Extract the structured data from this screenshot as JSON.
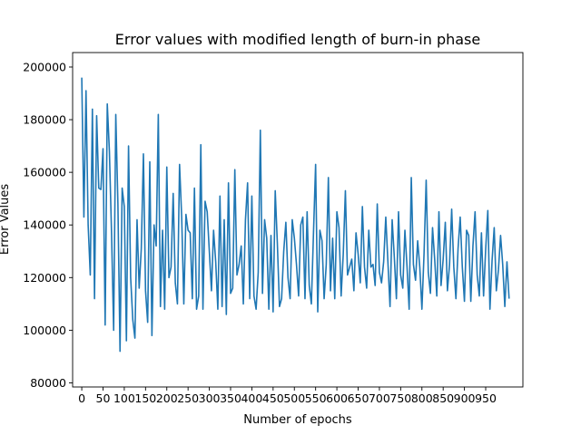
{
  "chart_data": {
    "type": "line",
    "title": "Error values with modified length of burn-in phase",
    "xlabel": "Number of epochs",
    "ylabel": "Error Values",
    "xlim": [
      -21.5,
      1037.5
    ],
    "ylim": [
      78440,
      205500
    ],
    "x_ticks": [
      0,
      50,
      100,
      150,
      200,
      250,
      300,
      350,
      400,
      450,
      500,
      550,
      600,
      650,
      700,
      750,
      800,
      850,
      900,
      950
    ],
    "y_ticks": [
      80000,
      100000,
      120000,
      140000,
      160000,
      180000,
      200000
    ],
    "y_tick_labels": [
      "80000",
      "100000",
      "120000",
      "140000",
      "160000",
      "180000",
      "200000"
    ],
    "grid": false,
    "colors": {
      "series": "#1f77b4"
    },
    "series": [
      {
        "x_start": 0,
        "x_step": 5,
        "values": [
          196000,
          143000,
          191000,
          140000,
          121000,
          184000,
          112000,
          181500,
          154000,
          153500,
          169000,
          102000,
          186000,
          168000,
          137000,
          100000,
          182000,
          148000,
          92000,
          154000,
          147000,
          96000,
          170000,
          120000,
          104000,
          97000,
          142000,
          116000,
          131000,
          167000,
          115000,
          103000,
          164000,
          98000,
          140000,
          132000,
          182000,
          109000,
          138000,
          108000,
          162000,
          120000,
          124000,
          152000,
          118000,
          110000,
          163000,
          143000,
          110000,
          144000,
          138000,
          137000,
          112000,
          154000,
          108000,
          113000,
          170500,
          108000,
          149000,
          145000,
          130000,
          115000,
          138000,
          126000,
          108000,
          151000,
          109000,
          142000,
          106000,
          156000,
          114000,
          116000,
          161000,
          121000,
          125000,
          132000,
          110000,
          142000,
          156000,
          112000,
          151000,
          113000,
          108000,
          122000,
          176000,
          114000,
          142000,
          135000,
          108000,
          136000,
          107000,
          153000,
          133000,
          109000,
          112000,
          130000,
          141000,
          120000,
          112000,
          142000,
          135000,
          125000,
          113000,
          140000,
          143000,
          112000,
          145000,
          117000,
          110000,
          137000,
          163000,
          107000,
          138000,
          134000,
          112000,
          125000,
          158000,
          115000,
          135000,
          112000,
          145000,
          139000,
          113000,
          129000,
          153000,
          121000,
          124000,
          127000,
          115000,
          137000,
          129000,
          118000,
          147000,
          124000,
          116000,
          138000,
          124000,
          125000,
          117000,
          148000,
          122000,
          118000,
          126000,
          143000,
          126000,
          109000,
          142000,
          128000,
          112000,
          145000,
          121000,
          116000,
          138000,
          124000,
          108000,
          158000,
          125000,
          119000,
          134000,
          124000,
          108000,
          129000,
          157000,
          122000,
          114000,
          139000,
          127000,
          113000,
          145000,
          117000,
          127000,
          141000,
          115000,
          125000,
          146000,
          124000,
          112000,
          131000,
          143000,
          124000,
          111000,
          138000,
          136000,
          111000,
          132000,
          145000,
          121000,
          113000,
          137000,
          113000,
          131000,
          145500,
          108000,
          126500,
          139000,
          115000,
          123000,
          136000,
          125000,
          109000,
          126000,
          112000
        ]
      }
    ]
  }
}
